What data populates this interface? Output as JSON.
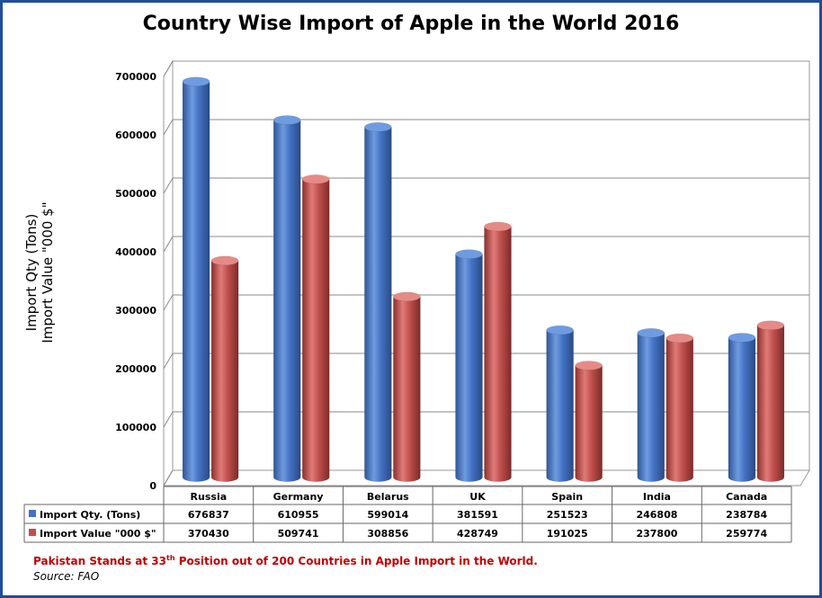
{
  "chart_data": {
    "type": "bar",
    "title": "Country Wise Import of Apple in the World 2016",
    "ylabel_line1": "Import Qty (Tons)",
    "ylabel_line2": "Import Value \"000 $\"",
    "ylim": [
      0,
      700000
    ],
    "yticks": [
      "0",
      "100000",
      "200000",
      "300000",
      "400000",
      "500000",
      "600000",
      "700000"
    ],
    "yticks_values": [
      0,
      100000,
      200000,
      300000,
      400000,
      500000,
      600000,
      700000
    ],
    "grid": true,
    "legend_position": "table-below",
    "categories": [
      "Russia",
      "Germany",
      "Belarus",
      "UK",
      "Spain",
      "India",
      "Canada"
    ],
    "series": [
      {
        "name": "Import Qty. (Tons)",
        "color": "#4472c4",
        "values": [
          676837,
          610955,
          599014,
          381591,
          251523,
          246808,
          238784
        ],
        "labels": [
          "676837",
          "610955",
          "599014",
          "381591",
          "251523",
          "246808",
          "238784"
        ]
      },
      {
        "name": "Import Value \"000 $\"",
        "color": "#c0504d",
        "values": [
          370430,
          509741,
          308856,
          428749,
          191025,
          237800,
          259774
        ],
        "labels": [
          "370430",
          "509741",
          "308856",
          "428749",
          "191025",
          "237800",
          "259774"
        ]
      }
    ]
  },
  "footer": {
    "note_before": "Pakistan Stands at 33",
    "note_sup": "th",
    "note_after": " Position out of 200 Countries in Apple Import in the World.",
    "source": "Source: FAO"
  }
}
